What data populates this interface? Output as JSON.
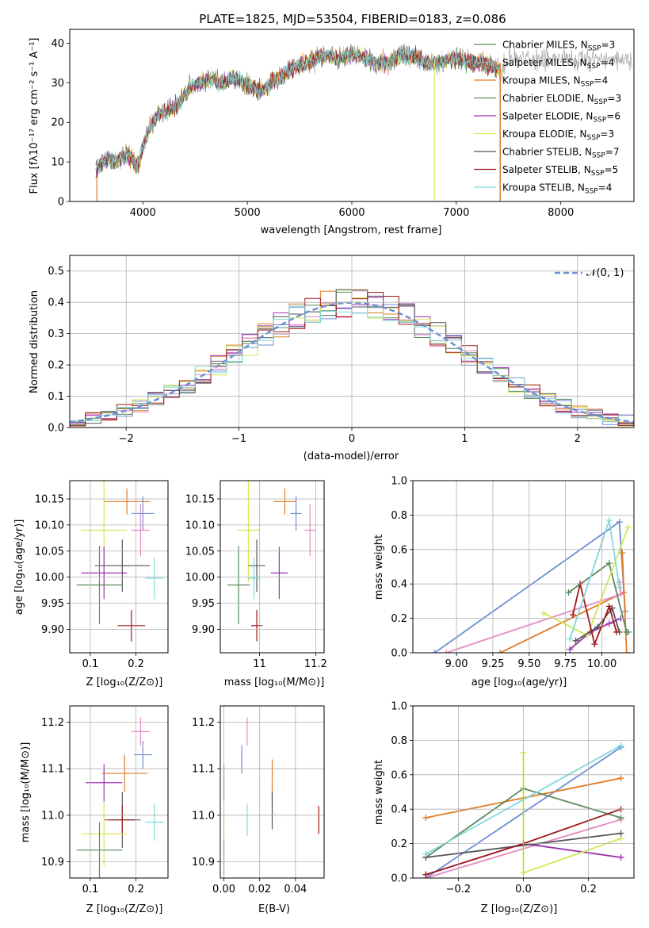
{
  "figure_title": "PLATE=1825, MJD=53504, FIBERID=0183, z=0.086",
  "colors": {
    "c0": "#6b8fd6",
    "c1": "#e07b26",
    "c2": "#e38bc0",
    "c3": "#5a8a5e",
    "c4": "#9b30b0",
    "c5": "#d4e857",
    "c6": "#555555",
    "c7": "#a01818",
    "c8": "#82d9dc"
  },
  "legend_spectrum": [
    {
      "label": "Chabrier MILES, N",
      "sub": "SSP",
      "suffix": "=3",
      "color": "#5a8a5e"
    },
    {
      "label": "Salpeter MILES, N",
      "sub": "SSP",
      "suffix": "=4",
      "color": "#9b9b9b"
    },
    {
      "label": "Kroupa MILES, N",
      "sub": "SSP",
      "suffix": "=4",
      "color": "#e07b26"
    },
    {
      "label": "Chabrier ELODIE, N",
      "sub": "SSP",
      "suffix": "=3",
      "color": "#5a8a5e"
    },
    {
      "label": "Salpeter ELODIE, N",
      "sub": "SSP",
      "suffix": "=6",
      "color": "#9b30b0"
    },
    {
      "label": "Kroupa ELODIE, N",
      "sub": "SSP",
      "suffix": "=3",
      "color": "#d4e857"
    },
    {
      "label": "Chabrier STELIB, N",
      "sub": "SSP",
      "suffix": "=7",
      "color": "#555555"
    },
    {
      "label": "Salpeter STELIB, N",
      "sub": "SSP",
      "suffix": "=5",
      "color": "#a01818"
    },
    {
      "label": "Kroupa STELIB, N",
      "sub": "SSP",
      "suffix": "=4",
      "color": "#82d9dc"
    }
  ],
  "chart_data": [
    {
      "id": "spectrum",
      "type": "line",
      "xlabel": "wavelength [Angstrom, rest frame]",
      "ylabel": "Flux [fλ10⁻¹⁷ erg cm⁻² s⁻¹ A⁻¹]",
      "xlim": [
        3300,
        8700
      ],
      "ylim": [
        0,
        43.5
      ],
      "xticks": [
        4000,
        5000,
        6000,
        7000,
        8000
      ],
      "yticks": [
        0,
        10,
        20,
        30,
        40
      ],
      "x": [
        3550,
        3650,
        3750,
        3850,
        3950,
        4050,
        4150,
        4250,
        4350,
        4450,
        4550,
        4650,
        4750,
        4850,
        4950,
        5050,
        5150,
        5250,
        5350,
        5450,
        5550,
        5650,
        5750,
        5850,
        5950,
        6050,
        6150,
        6250,
        6350,
        6450,
        6550,
        6650,
        6750,
        6850,
        6950,
        7050,
        7150,
        7250,
        7350,
        7450
      ],
      "y": [
        8,
        11,
        10,
        12,
        9,
        18,
        22,
        23,
        25,
        29,
        30,
        31,
        30,
        31,
        30,
        29,
        28,
        31,
        32,
        34,
        35,
        36,
        37,
        36,
        37,
        37,
        36,
        35,
        35,
        37,
        37,
        36,
        35,
        35,
        36,
        36,
        35,
        35,
        34,
        33
      ],
      "notes": "noisy curves for 9 models overlap the data"
    },
    {
      "id": "residuals",
      "type": "histogram",
      "xlabel": "(data-model)/error",
      "ylabel": "Normed distribution",
      "xlim": [
        -2.5,
        2.5
      ],
      "ylim": [
        0,
        0.55
      ],
      "xticks": [
        -2,
        -1,
        0,
        1,
        2
      ],
      "yticks": [
        0.0,
        0.1,
        0.2,
        0.3,
        0.4,
        0.5
      ],
      "legend": "𝒩(0, 1)",
      "gaussian": {
        "mu": 0,
        "sigma": 1
      }
    },
    {
      "id": "age_vs_Z",
      "type": "scatter",
      "xlabel": "Z [log₁₀(Z/Z⊙)]",
      "ylabel": "age  [log₁₀(age/yr)]",
      "xlim": [
        0.055,
        0.27
      ],
      "ylim": [
        9.855,
        10.185
      ],
      "xticks": [
        0.1,
        0.2
      ],
      "yticks": [
        9.9,
        9.95,
        10.0,
        10.05,
        10.1,
        10.15
      ],
      "points": [
        {
          "x": 0.18,
          "y": 10.145,
          "xerr": 0.05,
          "yerr": 0.025,
          "color": "c1"
        },
        {
          "x": 0.215,
          "y": 10.122,
          "xerr": 0.025,
          "yerr": 0.033,
          "color": "c0"
        },
        {
          "x": 0.21,
          "y": 10.09,
          "xerr": 0.02,
          "yerr": 0.05,
          "color": "c2"
        },
        {
          "x": 0.13,
          "y": 10.09,
          "xerr": 0.05,
          "yerr": 0.1,
          "color": "c5"
        },
        {
          "x": 0.17,
          "y": 10.022,
          "xerr": 0.06,
          "yerr": 0.05,
          "color": "c6"
        },
        {
          "x": 0.24,
          "y": 9.998,
          "xerr": 0.02,
          "yerr": 0.04,
          "color": "c8"
        },
        {
          "x": 0.13,
          "y": 10.008,
          "xerr": 0.05,
          "yerr": 0.05,
          "color": "c4"
        },
        {
          "x": 0.12,
          "y": 9.985,
          "xerr": 0.05,
          "yerr": 0.075,
          "color": "c3"
        },
        {
          "x": 0.19,
          "y": 9.907,
          "xerr": 0.03,
          "yerr": 0.03,
          "color": "c7"
        }
      ]
    },
    {
      "id": "age_vs_mass",
      "type": "scatter",
      "xlabel": "mass [log₁₀(M/M⊙)]",
      "ylabel": "",
      "xlim": [
        10.86,
        11.23
      ],
      "ylim": [
        9.855,
        10.185
      ],
      "xticks": [
        11.0,
        11.2
      ],
      "yticks": [
        9.9,
        9.95,
        10.0,
        10.05,
        10.1,
        10.15
      ],
      "points": [
        {
          "x": 11.09,
          "y": 10.145,
          "xerr": 0.04,
          "yerr": 0.025,
          "color": "c1"
        },
        {
          "x": 11.13,
          "y": 10.122,
          "xerr": 0.02,
          "yerr": 0.033,
          "color": "c0"
        },
        {
          "x": 11.18,
          "y": 10.09,
          "xerr": 0.02,
          "yerr": 0.05,
          "color": "c2"
        },
        {
          "x": 10.96,
          "y": 10.09,
          "xerr": 0.04,
          "yerr": 0.1,
          "color": "c5"
        },
        {
          "x": 10.99,
          "y": 10.022,
          "xerr": 0.03,
          "yerr": 0.05,
          "color": "c6"
        },
        {
          "x": 10.98,
          "y": 9.998,
          "xerr": 0.02,
          "yerr": 0.04,
          "color": "c8"
        },
        {
          "x": 11.07,
          "y": 10.008,
          "xerr": 0.03,
          "yerr": 0.05,
          "color": "c4"
        },
        {
          "x": 10.925,
          "y": 9.985,
          "xerr": 0.04,
          "yerr": 0.075,
          "color": "c3"
        },
        {
          "x": 10.99,
          "y": 9.907,
          "xerr": 0.02,
          "yerr": 0.03,
          "color": "c7"
        }
      ]
    },
    {
      "id": "weight_vs_age",
      "type": "line",
      "xlabel": "age  [log₁₀(age/yr)]",
      "ylabel": "mass weight",
      "xlim": [
        8.7,
        10.22
      ],
      "ylim": [
        0,
        1.0
      ],
      "xticks": [
        9.0,
        9.25,
        9.5,
        9.75,
        10.0
      ],
      "xticklabels": [
        "9.00",
        "9.25",
        "9.50",
        "9.75",
        "10.00"
      ],
      "yticks": [
        0.0,
        0.2,
        0.4,
        0.6,
        0.8,
        1.0
      ],
      "series": [
        {
          "color": "c0",
          "x": [
            8.85,
            10.12,
            10.16
          ],
          "y": [
            0.0,
            0.76,
            0.24
          ]
        },
        {
          "color": "c1",
          "x": [
            9.3,
            10.15,
            10.14,
            10.17
          ],
          "y": [
            0.0,
            0.35,
            0.58,
            0.0
          ]
        },
        {
          "color": "c2",
          "x": [
            8.93,
            10.13,
            10.12
          ],
          "y": [
            0.0,
            0.34,
            0.41
          ]
        },
        {
          "color": "c3",
          "x": [
            9.77,
            10.05,
            10.17,
            10.18
          ],
          "y": [
            0.35,
            0.52,
            0.12,
            0.12
          ]
        },
        {
          "color": "c4",
          "x": [
            9.78,
            9.92,
            10.05,
            10.13
          ],
          "y": [
            0.02,
            0.12,
            0.17,
            0.2
          ]
        },
        {
          "color": "c5",
          "x": [
            9.6,
            9.9,
            10.18
          ],
          "y": [
            0.23,
            0.1,
            0.73
          ]
        },
        {
          "color": "c6",
          "x": [
            9.82,
            9.97,
            10.07,
            10.12
          ],
          "y": [
            0.07,
            0.15,
            0.26,
            0.12
          ]
        },
        {
          "color": "c7",
          "x": [
            9.8,
            9.85,
            9.95,
            10.05,
            10.1
          ],
          "y": [
            0.22,
            0.4,
            0.05,
            0.27,
            0.12
          ]
        },
        {
          "color": "c8",
          "x": [
            9.78,
            10.05,
            10.12
          ],
          "y": [
            0.08,
            0.77,
            0.38
          ]
        }
      ]
    },
    {
      "id": "mass_vs_Z",
      "type": "scatter",
      "xlabel": "Z [log₁₀(Z/Z⊙)]",
      "ylabel": "mass [log₁₀(M/M⊙)]",
      "xlim": [
        0.055,
        0.27
      ],
      "ylim": [
        10.865,
        11.235
      ],
      "xticks": [
        0.1,
        0.2
      ],
      "yticks": [
        10.9,
        11.0,
        11.1,
        11.2
      ],
      "points": [
        {
          "x": 0.21,
          "y": 11.18,
          "xerr": 0.02,
          "yerr": 0.03,
          "color": "c2"
        },
        {
          "x": 0.215,
          "y": 11.13,
          "xerr": 0.02,
          "yerr": 0.03,
          "color": "c0"
        },
        {
          "x": 0.175,
          "y": 11.09,
          "xerr": 0.05,
          "yerr": 0.04,
          "color": "c1"
        },
        {
          "x": 0.13,
          "y": 11.07,
          "xerr": 0.04,
          "yerr": 0.04,
          "color": "c4"
        },
        {
          "x": 0.17,
          "y": 10.99,
          "xerr": 0.04,
          "yerr": 0.06,
          "color": "c6"
        },
        {
          "x": 0.24,
          "y": 10.985,
          "xerr": 0.02,
          "yerr": 0.04,
          "color": "c8"
        },
        {
          "x": 0.17,
          "y": 10.99,
          "xerr": 0.03,
          "yerr": 0.03,
          "color": "c7"
        },
        {
          "x": 0.13,
          "y": 10.96,
          "xerr": 0.05,
          "yerr": 0.07,
          "color": "c5"
        },
        {
          "x": 0.12,
          "y": 10.925,
          "xerr": 0.05,
          "yerr": 0.06,
          "color": "c3"
        }
      ]
    },
    {
      "id": "mass_vs_ebv",
      "type": "scatter",
      "xlabel": "E(B-V)",
      "ylabel": "",
      "xlim": [
        -0.002,
        0.056
      ],
      "ylim": [
        10.865,
        11.235
      ],
      "xticks": [
        0.0,
        0.02,
        0.04
      ],
      "xticklabels": [
        "0.00",
        "0.02",
        "0.04"
      ],
      "yticks": [
        10.9,
        11.0,
        11.1,
        11.2
      ],
      "points": [
        {
          "x": 0.013,
          "y": 11.18,
          "xerr": 0.0,
          "yerr": 0.03,
          "color": "c2"
        },
        {
          "x": 0.01,
          "y": 11.12,
          "xerr": 0.0,
          "yerr": 0.03,
          "color": "c0"
        },
        {
          "x": 0.027,
          "y": 11.07,
          "xerr": 0.0,
          "yerr": 0.05,
          "color": "c1"
        },
        {
          "x": 0.0,
          "y": 11.07,
          "xerr": 0.0,
          "yerr": 0.04,
          "color": "c4"
        },
        {
          "x": 0.027,
          "y": 11.01,
          "xerr": 0.0,
          "yerr": 0.04,
          "color": "c6"
        },
        {
          "x": 0.013,
          "y": 10.99,
          "xerr": 0.0,
          "yerr": 0.035,
          "color": "c8"
        },
        {
          "x": 0.053,
          "y": 10.99,
          "xerr": 0.0,
          "yerr": 0.03,
          "color": "c7"
        },
        {
          "x": 0.0,
          "y": 10.95,
          "xerr": 0.0,
          "yerr": 0.06,
          "color": "c5"
        },
        {
          "x": 0.0,
          "y": 10.91,
          "xerr": 0.0,
          "yerr": 0.04,
          "color": "c3"
        }
      ]
    },
    {
      "id": "weight_vs_Z",
      "type": "line",
      "xlabel": "Z [log₁₀(Z/Z⊙)]",
      "ylabel": "mass weight",
      "xlim": [
        -0.34,
        0.34
      ],
      "ylim": [
        0,
        1.0
      ],
      "xticks": [
        -0.2,
        0.0,
        0.2
      ],
      "xticklabels": [
        "−0.2",
        "0.0",
        "0.2"
      ],
      "yticks": [
        0.0,
        0.2,
        0.4,
        0.6,
        0.8,
        1.0
      ],
      "series": [
        {
          "color": "c0",
          "x": [
            -0.3,
            0.3
          ],
          "y": [
            0.0,
            0.76
          ]
        },
        {
          "color": "c1",
          "x": [
            -0.3,
            0.3
          ],
          "y": [
            0.35,
            0.58
          ]
        },
        {
          "color": "c2",
          "x": [
            -0.3,
            0.3
          ],
          "y": [
            0.0,
            0.34
          ]
        },
        {
          "color": "c3",
          "x": [
            -0.3,
            0.0,
            0.3
          ],
          "y": [
            0.12,
            0.52,
            0.35
          ]
        },
        {
          "color": "c4",
          "x": [
            -0.3,
            0.0,
            0.3
          ],
          "y": [
            0.02,
            0.2,
            0.12
          ]
        },
        {
          "color": "c5",
          "x": [
            0.0,
            0.0,
            0.3
          ],
          "y": [
            0.73,
            0.03,
            0.23
          ]
        },
        {
          "color": "c6",
          "x": [
            -0.3,
            0.3
          ],
          "y": [
            0.12,
            0.26
          ]
        },
        {
          "color": "c7",
          "x": [
            -0.3,
            0.0,
            0.3
          ],
          "y": [
            0.02,
            0.2,
            0.4
          ]
        },
        {
          "color": "c8",
          "x": [
            -0.3,
            0.3
          ],
          "y": [
            0.14,
            0.77
          ]
        }
      ]
    }
  ]
}
